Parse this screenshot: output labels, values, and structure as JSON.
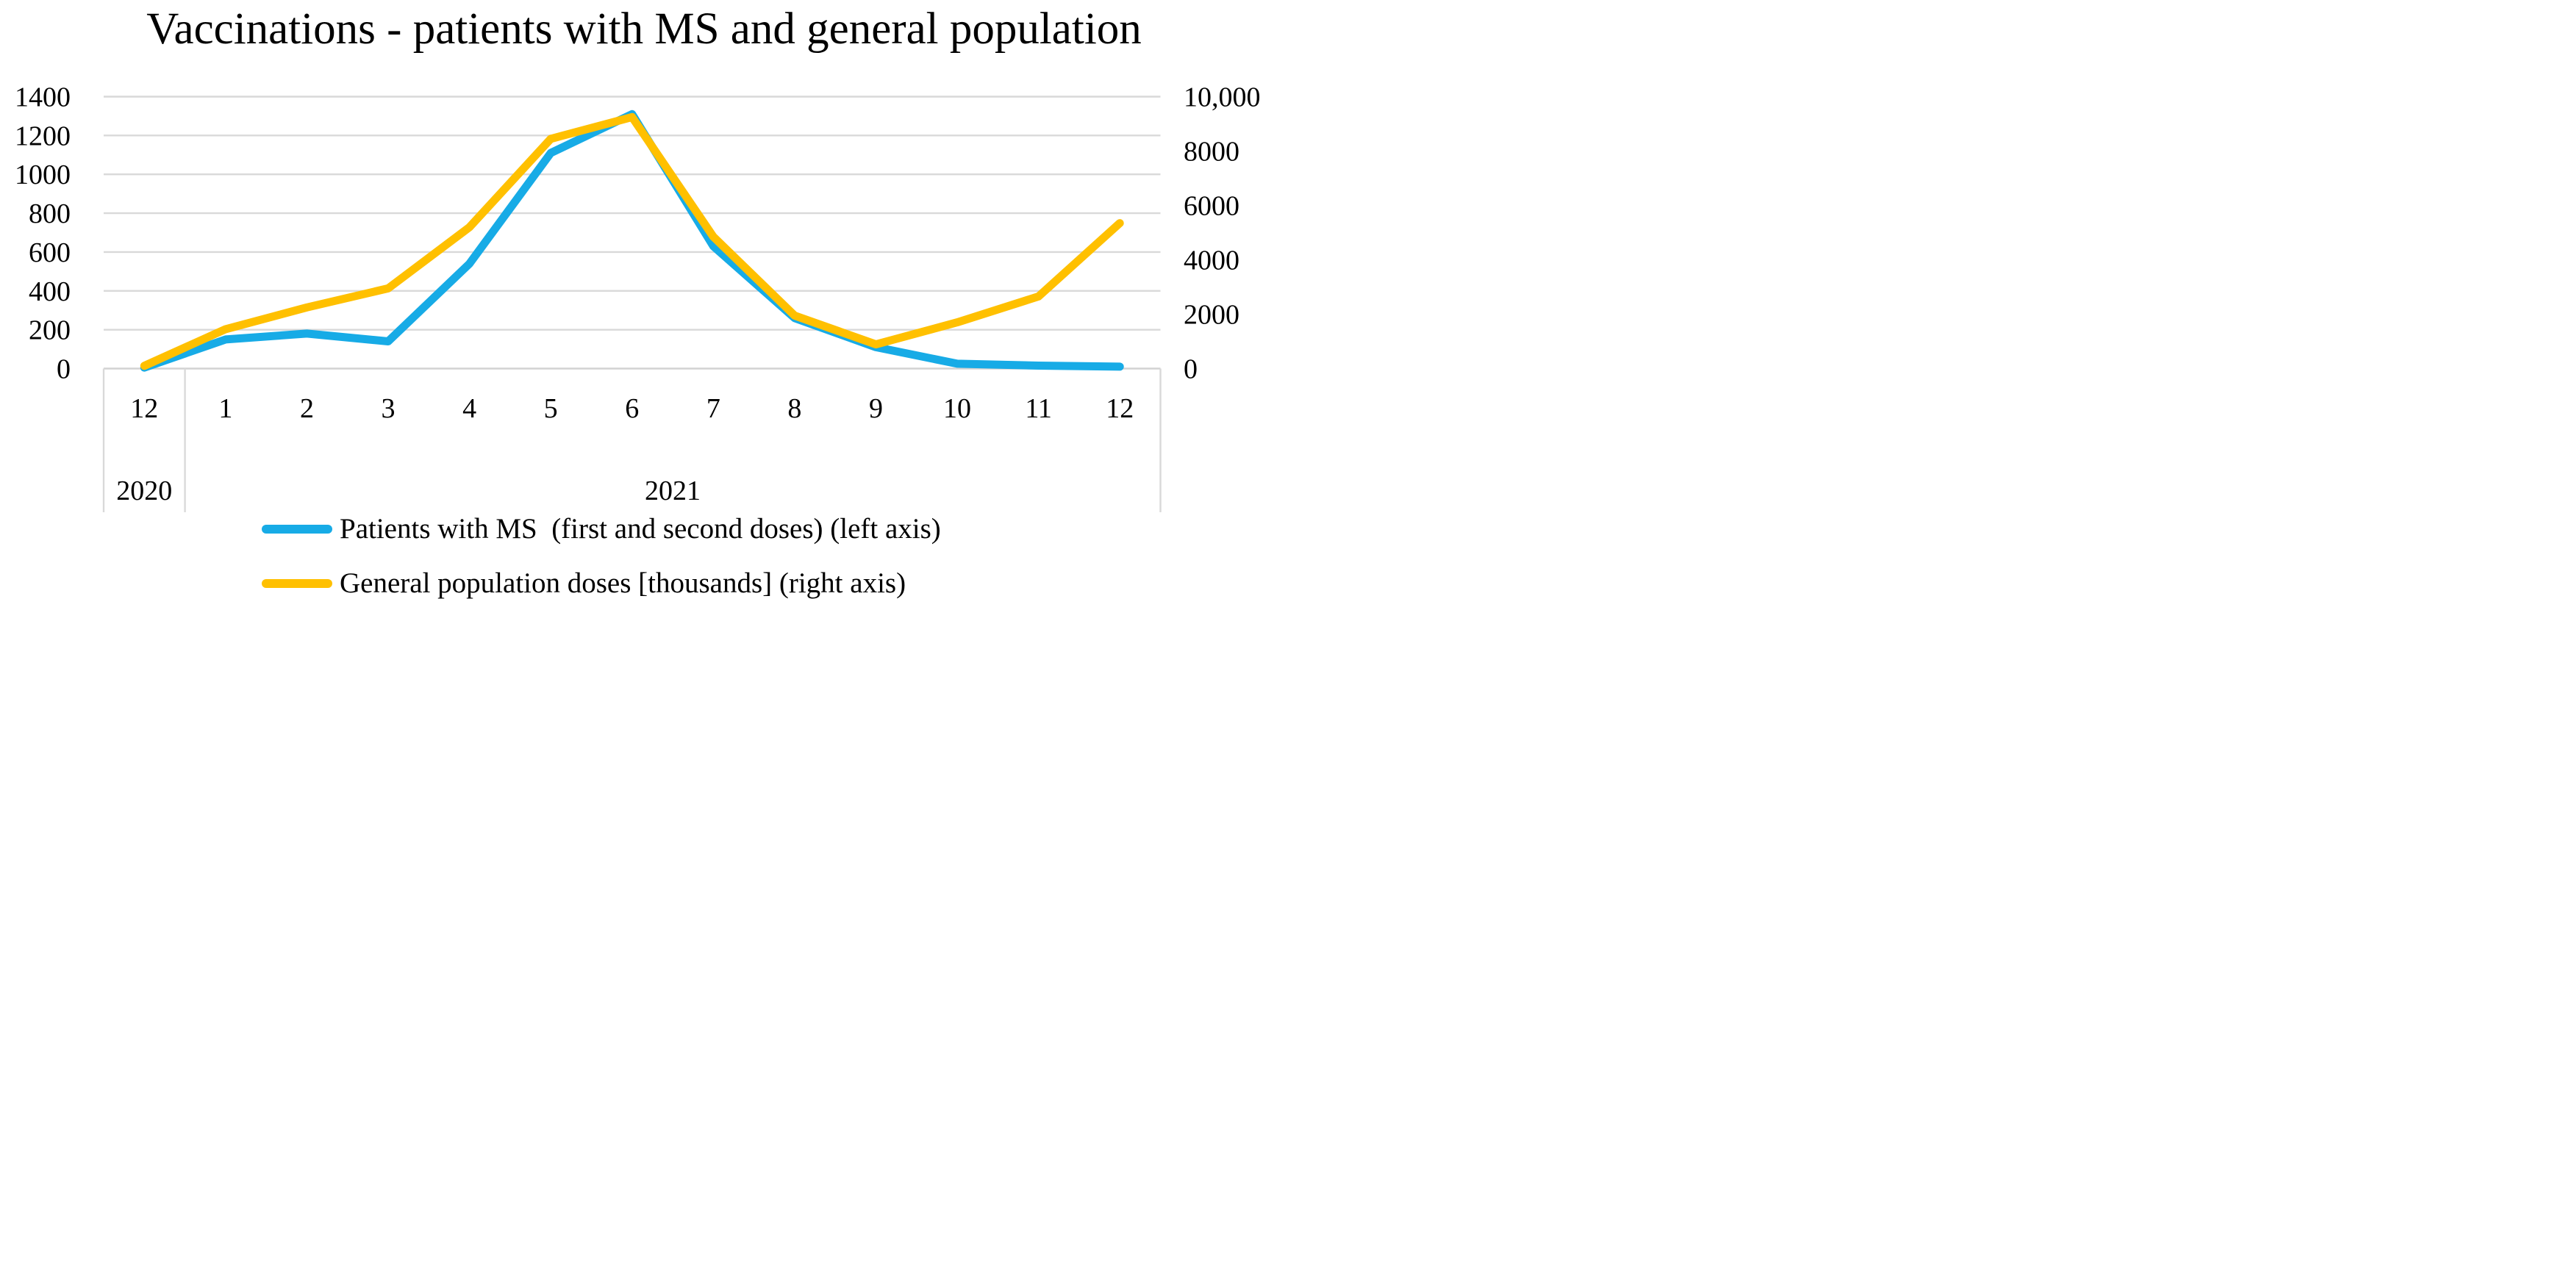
{
  "chart_data": {
    "type": "line",
    "title": "Vaccinations - patients with MS and general population",
    "x_categories": [
      "12",
      "1",
      "2",
      "3",
      "4",
      "5",
      "6",
      "7",
      "8",
      "9",
      "10",
      "11",
      "12"
    ],
    "x_group_labels": [
      {
        "label": "2020",
        "start": 0,
        "end": 0
      },
      {
        "label": "2021",
        "start": 1,
        "end": 12
      }
    ],
    "left_axis": {
      "tick_labels": [
        "0",
        "200",
        "400",
        "600",
        "800",
        "1000",
        "1200",
        "1400"
      ],
      "min": 0,
      "max": 1400
    },
    "right_axis": {
      "tick_labels": [
        "0",
        "2000",
        "4000",
        "6000",
        "8000",
        "10,000"
      ],
      "min": 0,
      "max": 10000
    },
    "grid": "horizontal",
    "legend_position": "bottom",
    "series": [
      {
        "name": "Patients with MS  (first and second doses) (left axis)",
        "axis": "left",
        "color": "#17ABE6",
        "values": [
          5,
          150,
          180,
          140,
          540,
          1110,
          1310,
          630,
          260,
          110,
          25,
          15,
          10
        ]
      },
      {
        "name": "General population doses [thousands] (right axis)",
        "axis": "right",
        "color": "#FFC000",
        "values": [
          100,
          1450,
          2250,
          2950,
          5200,
          8450,
          9250,
          4850,
          1950,
          890,
          1700,
          2650,
          5350
        ]
      }
    ],
    "colors": {
      "gridline": "#D9D9D9",
      "axis_line": "#D2D2D2",
      "text": "#000000",
      "background": "#FFFFFF"
    }
  }
}
